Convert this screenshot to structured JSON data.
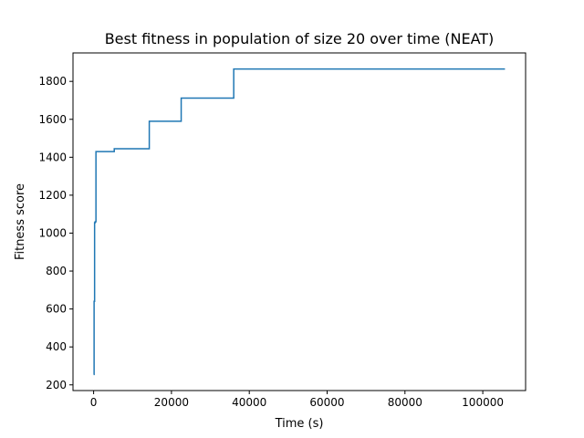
{
  "chart_data": {
    "type": "line",
    "title": "Best fitness in population of size 20 over time (NEAT)",
    "xlabel": "Time (s)",
    "ylabel": "Fitness score",
    "xlim": [
      -5300,
      111000
    ],
    "ylim": [
      170,
      1950
    ],
    "xticks": [
      0,
      20000,
      40000,
      60000,
      80000,
      100000
    ],
    "yticks": [
      200,
      400,
      600,
      800,
      1000,
      1200,
      1400,
      1600,
      1800
    ],
    "grid": false,
    "series": [
      {
        "color": "#1f77b4",
        "step": true,
        "x": [
          0,
          120,
          250,
          400,
          600,
          5300,
          14300,
          22500,
          36000,
          105700
        ],
        "y": [
          255,
          640,
          1055,
          1060,
          1430,
          1445,
          1590,
          1712,
          1865,
          1865
        ]
      }
    ]
  }
}
